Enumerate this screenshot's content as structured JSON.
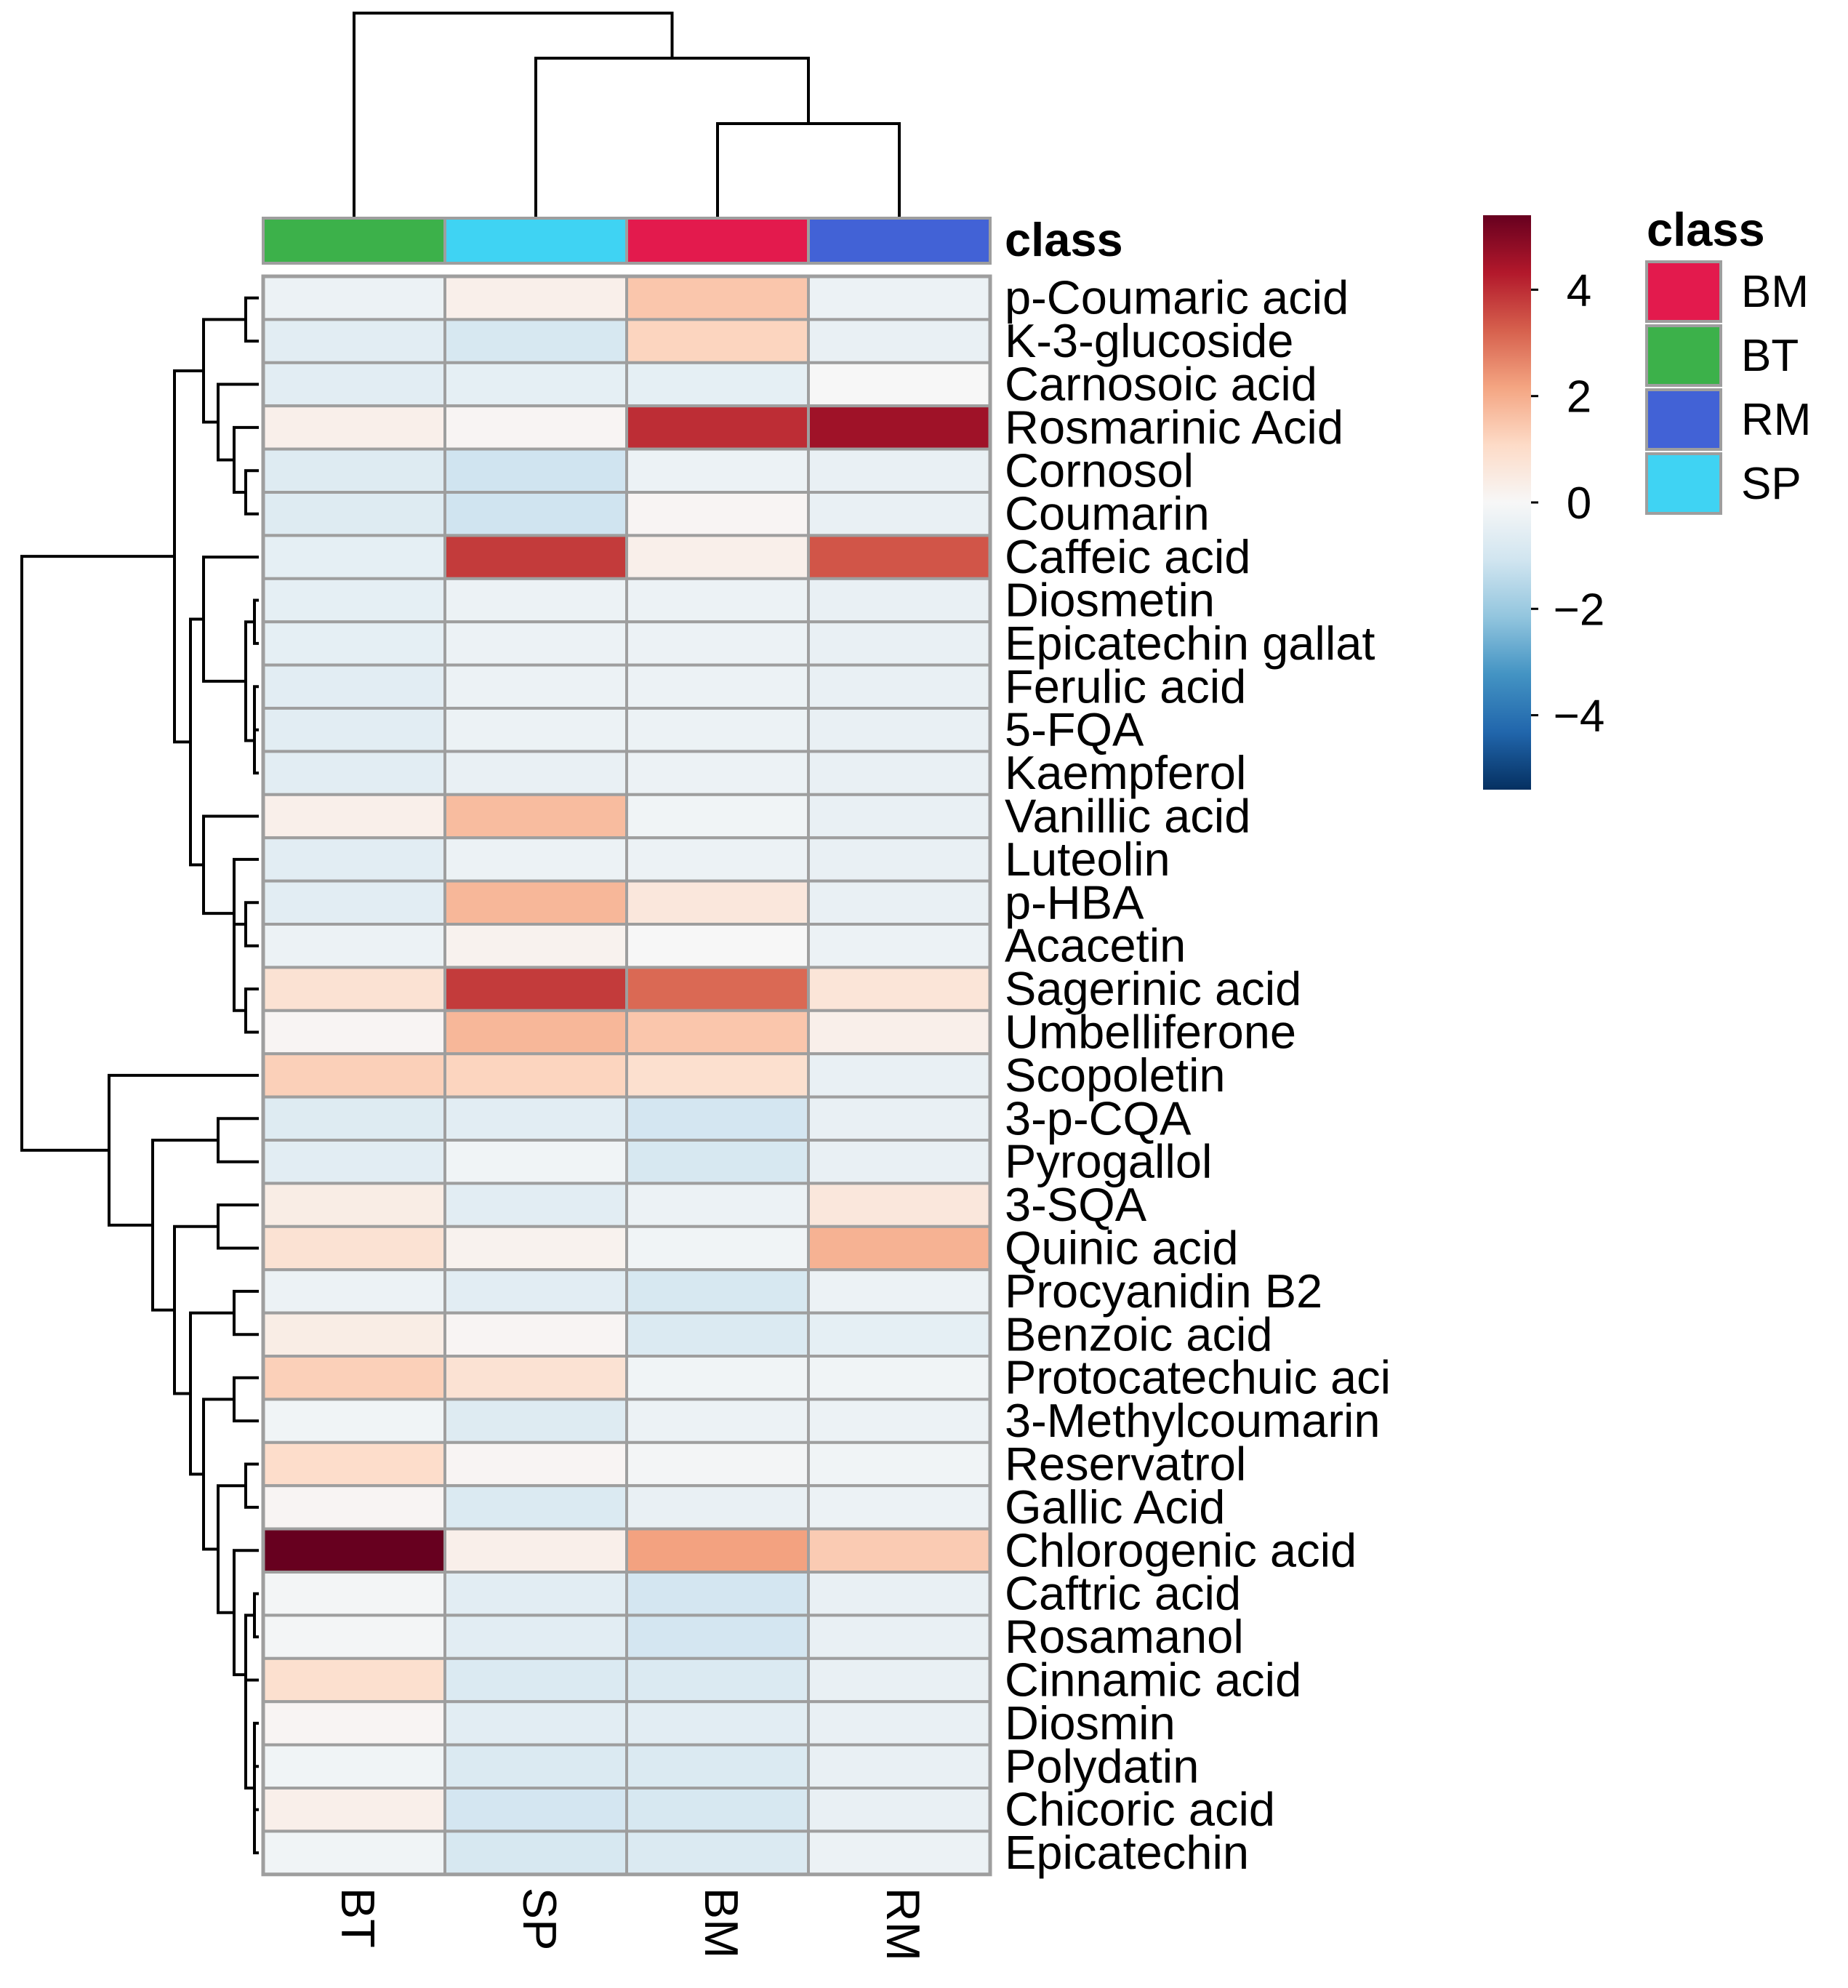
{
  "chart_data": {
    "type": "heatmap",
    "columns": [
      "BT",
      "SP",
      "BM",
      "RM"
    ],
    "column_classes": [
      "BT",
      "SP",
      "BM",
      "RM"
    ],
    "annotation_label": "class",
    "rows": [
      "p-Coumaric acid",
      "K-3-glucoside",
      "Carnosoic acid",
      "Rosmarinic Acid",
      "Cornosol",
      "Coumarin",
      "Caffeic acid",
      "Diosmetin",
      "Epicatechin gallat",
      "Ferulic acid",
      "5-FQA",
      "Kaempferol",
      "Vanillic acid",
      "Luteolin",
      "p-HBA",
      "Acacetin",
      "Sagerinic acid",
      "Umbelliferone",
      "Scopoletin",
      "3-p-CQA",
      "Pyrogallol",
      "3-SQA",
      "Quinic acid",
      "Procyanidin B2",
      "Benzoic acid",
      "Protocatechuic aci",
      "3-Methylcoumarin",
      "Reservatrol",
      "Gallic Acid",
      "Chlorogenic acid",
      "Caftric acid",
      "Rosamanol",
      "Cinnamic acid",
      "Diosmin",
      "Polydatin",
      "Chicoric acid",
      "Epicatechin"
    ],
    "values": [
      [
        -0.3,
        0.3,
        1.5,
        -0.3
      ],
      [
        -0.6,
        -0.9,
        1.2,
        -0.4
      ],
      [
        -0.6,
        -0.5,
        -0.5,
        0.0
      ],
      [
        0.3,
        0.1,
        4.0,
        4.6
      ],
      [
        -0.7,
        -1.1,
        -0.3,
        -0.4
      ],
      [
        -0.7,
        -1.1,
        0.1,
        -0.4
      ],
      [
        -0.5,
        3.8,
        0.3,
        3.4
      ],
      [
        -0.5,
        -0.3,
        -0.3,
        -0.4
      ],
      [
        -0.5,
        -0.3,
        -0.3,
        -0.4
      ],
      [
        -0.6,
        -0.3,
        -0.3,
        -0.4
      ],
      [
        -0.6,
        -0.3,
        -0.3,
        -0.4
      ],
      [
        -0.6,
        -0.4,
        -0.3,
        -0.4
      ],
      [
        0.3,
        1.7,
        -0.2,
        -0.4
      ],
      [
        -0.6,
        -0.3,
        -0.3,
        -0.4
      ],
      [
        -0.6,
        1.8,
        0.6,
        -0.4
      ],
      [
        -0.3,
        0.2,
        0.0,
        -0.3
      ],
      [
        0.8,
        3.8,
        3.1,
        0.7
      ],
      [
        0.1,
        1.8,
        1.5,
        0.3
      ],
      [
        1.3,
        1.2,
        0.9,
        -0.4
      ],
      [
        -0.7,
        -0.6,
        -1.0,
        -0.4
      ],
      [
        -0.6,
        -0.2,
        -0.9,
        -0.4
      ],
      [
        0.4,
        -0.6,
        -0.3,
        0.6
      ],
      [
        0.8,
        0.2,
        -0.2,
        1.9
      ],
      [
        -0.3,
        -0.6,
        -0.9,
        -0.3
      ],
      [
        0.4,
        0.1,
        -0.8,
        -0.5
      ],
      [
        1.3,
        0.8,
        -0.2,
        -0.2
      ],
      [
        -0.2,
        -0.7,
        -0.3,
        -0.3
      ],
      [
        1.0,
        0.1,
        -0.1,
        -0.2
      ],
      [
        0.1,
        -0.8,
        -0.4,
        -0.3
      ],
      [
        5.4,
        0.3,
        2.2,
        1.4
      ],
      [
        -0.1,
        -0.6,
        -1.0,
        -0.4
      ],
      [
        -0.1,
        -0.6,
        -1.0,
        -0.4
      ],
      [
        0.9,
        -0.8,
        -0.8,
        -0.4
      ],
      [
        0.1,
        -0.6,
        -0.6,
        -0.4
      ],
      [
        -0.2,
        -0.8,
        -0.8,
        -0.4
      ],
      [
        0.3,
        -1.0,
        -0.9,
        -0.4
      ],
      [
        -0.2,
        -0.9,
        -0.8,
        -0.3
      ]
    ],
    "color_scale": {
      "min": -5.4,
      "max": 5.4,
      "ticks": [
        4,
        2,
        0,
        -2,
        -4
      ],
      "tick_labels": [
        "4",
        "2",
        "0",
        "−2",
        "−4"
      ],
      "stops": [
        "#053061",
        "#2166ac",
        "#4393c3",
        "#92c5de",
        "#d1e5f0",
        "#f7f7f7",
        "#fddbc7",
        "#f4a582",
        "#d6604d",
        "#b2182b",
        "#67001f"
      ]
    },
    "legend": {
      "title": "class",
      "entries": [
        {
          "label": "BM",
          "color": "#e31a4d"
        },
        {
          "label": "BT",
          "color": "#3cb14a"
        },
        {
          "label": "RM",
          "color": "#4262d6"
        },
        {
          "label": "SP",
          "color": "#3fd3f3"
        }
      ]
    },
    "class_colors": {
      "BT": "#3cb14a",
      "SP": "#3fd3f3",
      "BM": "#e31a4d",
      "RM": "#4262d6"
    },
    "cell_border_color": "#9e9e9e"
  }
}
